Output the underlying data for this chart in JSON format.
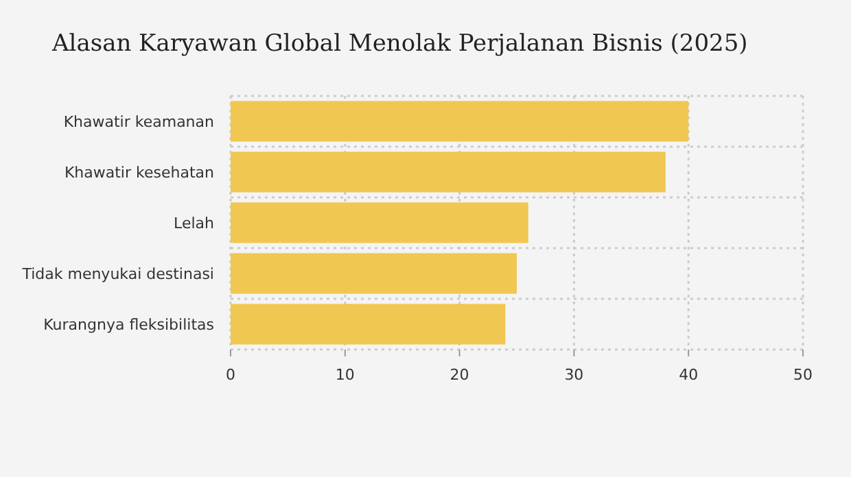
{
  "chart_data": {
    "type": "bar",
    "orientation": "horizontal",
    "title": "Alasan Karyawan Global Menolak Perjalanan Bisnis (2025)",
    "categories": [
      "Khawatir keamanan",
      "Khawatir kesehatan",
      "Lelah",
      "Tidak menyukai destinasi",
      "Kurangnya fleksibilitas"
    ],
    "values": [
      40,
      38,
      26,
      25,
      24
    ],
    "color": "#f0c750",
    "xlim": [
      0,
      50
    ],
    "xticks": [
      0,
      10,
      20,
      30,
      40,
      50
    ],
    "grid": true
  }
}
